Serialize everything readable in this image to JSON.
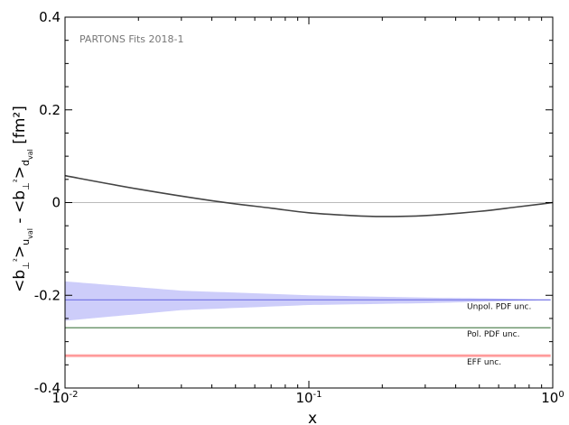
{
  "chart_data": {
    "type": "line",
    "annotation": "PARTONS Fits 2018-1",
    "xlabel": "x",
    "ylabel": "<b⊥²>u_val - <b⊥²>d_val [fm²]",
    "xscale": "log",
    "xlim": [
      0.01,
      1
    ],
    "ylim": [
      -0.4,
      0.4
    ],
    "x_ticks": [
      {
        "value": 0.01,
        "base": "10",
        "exp": "-2"
      },
      {
        "value": 0.1,
        "base": "10",
        "exp": "-1"
      },
      {
        "value": 1,
        "base": "10",
        "exp": "0"
      }
    ],
    "y_ticks": [
      {
        "value": 0.4,
        "label": "0.4"
      },
      {
        "value": 0.2,
        "label": "0.2"
      },
      {
        "value": 0,
        "label": "0"
      },
      {
        "value": -0.2,
        "label": "-0.2"
      },
      {
        "value": -0.4,
        "label": "-0.4"
      }
    ],
    "zero_line": true,
    "central": {
      "x": [
        0.01,
        0.02,
        0.04,
        0.07,
        0.1,
        0.15,
        0.2,
        0.3,
        0.5,
        0.7,
        0.9,
        1.0
      ],
      "y": [
        0.058,
        0.029,
        0.004,
        -0.012,
        -0.022,
        -0.028,
        -0.03,
        -0.028,
        -0.019,
        -0.01,
        -0.003,
        0.0
      ]
    },
    "bands": [
      {
        "label": "Unpol. PDF unc.",
        "center": -0.21,
        "color": "#7a7ae6",
        "fill": "#c8c8fa",
        "x": [
          0.01,
          0.03,
          0.1,
          0.3,
          0.6,
          0.9
        ],
        "upper": [
          -0.17,
          -0.19,
          -0.2,
          -0.205,
          -0.207,
          -0.209
        ],
        "lower": [
          -0.255,
          -0.232,
          -0.221,
          -0.217,
          -0.213,
          -0.211
        ]
      },
      {
        "label": "Pol. PDF unc.",
        "center": -0.27,
        "color": "#5b8a5b",
        "fill": "#b5d4b5",
        "x": [
          0.01,
          1.0
        ],
        "upper": [
          -0.269,
          -0.269
        ],
        "lower": [
          -0.271,
          -0.271
        ]
      },
      {
        "label": "EFF unc.",
        "center": -0.33,
        "color": "#ff7777",
        "fill": "#ffc2c2",
        "x": [
          0.01,
          1.0
        ],
        "upper": [
          -0.327,
          -0.327
        ],
        "lower": [
          -0.334,
          -0.334
        ]
      }
    ]
  }
}
